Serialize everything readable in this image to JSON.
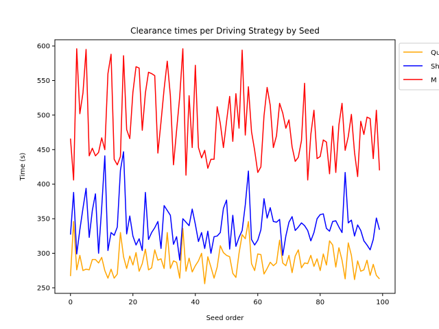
{
  "chart_data": {
    "type": "line",
    "title": "Clearance times per Driving Strategy by Seed",
    "xlabel": "Seed order",
    "ylabel": "Time (s)",
    "xlim": [
      -5,
      104
    ],
    "ylim": [
      242,
      609
    ],
    "xticks": [
      0,
      20,
      40,
      60,
      80,
      100
    ],
    "yticks": [
      250,
      300,
      350,
      400,
      450,
      500,
      550,
      600
    ],
    "grid": false,
    "legend_position": "outside-right-top",
    "series": [
      {
        "name": "Qu",
        "color": "#ffa500",
        "values": [
          267,
          346,
          276,
          297,
          275,
          277,
          276,
          291,
          291,
          286,
          294,
          275,
          264,
          277,
          264,
          270,
          330,
          295,
          278,
          296,
          283,
          301,
          274,
          285,
          306,
          276,
          279,
          305,
          290,
          292,
          278,
          330,
          278,
          289,
          287,
          264,
          336,
          274,
          293,
          273,
          282,
          289,
          300,
          256,
          295,
          280,
          264,
          280,
          311,
          301,
          297,
          295,
          271,
          265,
          300,
          327,
          321,
          346,
          285,
          275,
          299,
          298,
          270,
          278,
          287,
          282,
          286,
          319,
          286,
          282,
          297,
          272,
          296,
          305,
          279,
          286,
          285,
          297,
          281,
          292,
          275,
          299,
          283,
          318,
          312,
          280,
          308,
          290,
          263,
          315,
          297,
          262,
          289,
          274,
          276,
          290,
          268,
          284,
          268,
          263
        ]
      },
      {
        "name": "Sh",
        "color": "#0000ff",
        "values": [
          327,
          388,
          299,
          334,
          365,
          394,
          323,
          362,
          386,
          300,
          366,
          441,
          304,
          330,
          326,
          338,
          420,
          447,
          328,
          354,
          325,
          312,
          321,
          304,
          388,
          320,
          330,
          337,
          346,
          307,
          369,
          362,
          355,
          313,
          324,
          290,
          350,
          345,
          340,
          364,
          342,
          317,
          330,
          307,
          332,
          300,
          324,
          325,
          330,
          365,
          377,
          306,
          355,
          310,
          323,
          333,
          370,
          419,
          320,
          312,
          319,
          334,
          379,
          351,
          366,
          346,
          345,
          349,
          297,
          325,
          345,
          353,
          333,
          338,
          344,
          340,
          333,
          318,
          330,
          350,
          356,
          357,
          336,
          332,
          346,
          347,
          338,
          330,
          417,
          344,
          348,
          325,
          341,
          333,
          318,
          312,
          305,
          320,
          351,
          334
        ]
      },
      {
        "name": "M",
        "color": "#ff0000",
        "values": [
          466,
          406,
          596,
          502,
          532,
          595,
          441,
          452,
          441,
          446,
          467,
          450,
          560,
          588,
          436,
          428,
          440,
          586,
          479,
          466,
          533,
          570,
          568,
          478,
          532,
          562,
          560,
          557,
          445,
          490,
          538,
          578,
          528,
          428,
          478,
          527,
          596,
          413,
          528,
          453,
          572,
          453,
          438,
          449,
          423,
          436,
          436,
          512,
          488,
          453,
          491,
          527,
          462,
          531,
          481,
          594,
          471,
          541,
          476,
          449,
          417,
          425,
          499,
          540,
          514,
          453,
          470,
          517,
          503,
          481,
          493,
          454,
          433,
          439,
          463,
          546,
          406,
          472,
          507,
          437,
          440,
          464,
          461,
          415,
          484,
          417,
          486,
          517,
          449,
          469,
          501,
          446,
          411,
          491,
          472,
          497,
          495,
          437,
          507,
          420
        ]
      }
    ]
  }
}
